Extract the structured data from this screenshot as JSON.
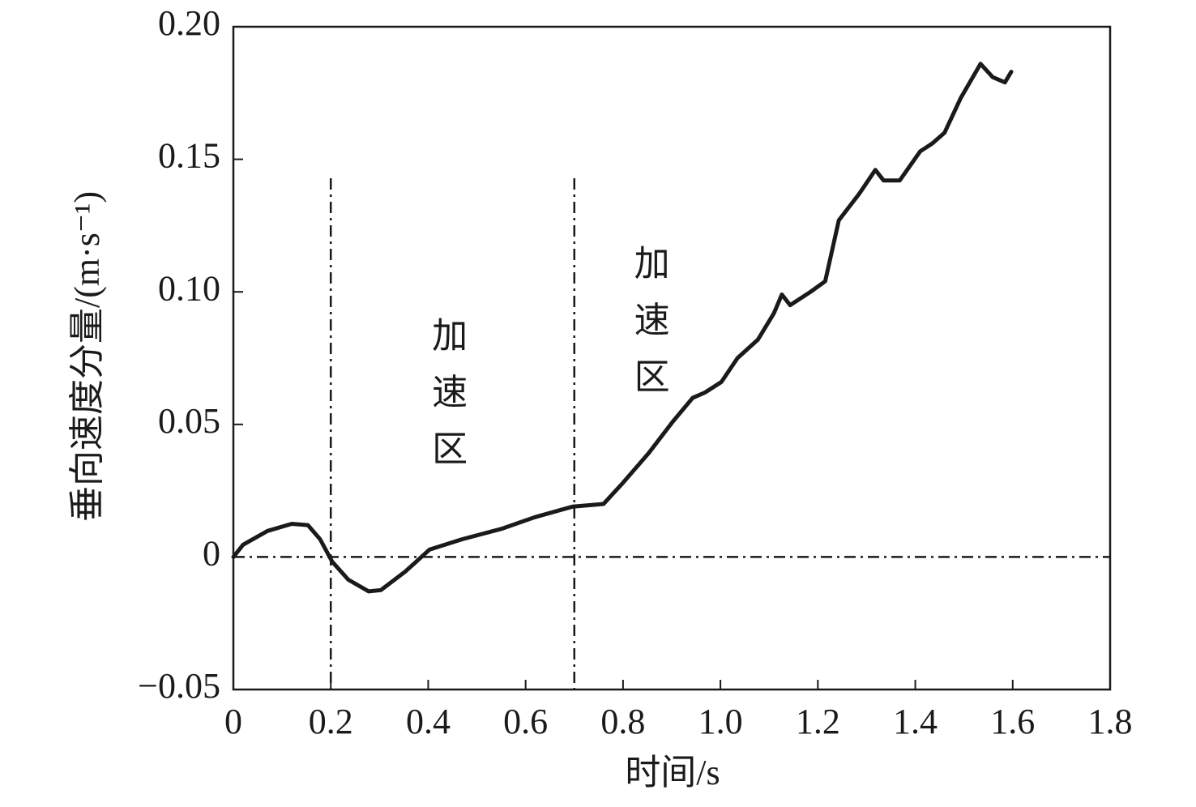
{
  "chart_data": {
    "type": "line",
    "xlabel": "时间/s",
    "ylabel": "垂向速度分量/(m·s⁻¹)",
    "x": [
      0,
      0.02,
      0.07,
      0.12,
      0.153,
      0.178,
      0.203,
      0.236,
      0.278,
      0.303,
      0.353,
      0.403,
      0.47,
      0.552,
      0.619,
      0.697,
      0.76,
      0.8,
      0.852,
      0.902,
      0.943,
      0.968,
      1.002,
      1.035,
      1.077,
      1.11,
      1.126,
      1.143,
      1.185,
      1.215,
      1.243,
      1.285,
      1.318,
      1.335,
      1.368,
      1.41,
      1.435,
      1.46,
      1.493,
      1.534,
      1.559,
      1.584,
      1.597
    ],
    "series": [
      {
        "color": "#1a1a1a",
        "values": [
          0,
          0.0046,
          0.0098,
          0.0125,
          0.012,
          0.0067,
          -0.0018,
          -0.0086,
          -0.013,
          -0.0125,
          -0.0055,
          0.0028,
          0.0067,
          0.0107,
          0.015,
          0.019,
          0.02,
          0.028,
          0.039,
          0.051,
          0.06,
          0.062,
          0.066,
          0.075,
          0.082,
          0.092,
          0.099,
          0.095,
          0.1,
          0.104,
          0.127,
          0.137,
          0.146,
          0.142,
          0.142,
          0.153,
          0.156,
          0.16,
          0.173,
          0.186,
          0.181,
          0.179,
          0.183
        ]
      }
    ],
    "xlim": [
      0,
      1.8
    ],
    "ylim": [
      -0.05,
      0.2
    ],
    "xticks": [
      0,
      0.2,
      0.4,
      0.6,
      0.8,
      {
        "value": 1,
        "label": "1.0"
      },
      1.2,
      1.4,
      1.6,
      1.8
    ],
    "yticks": [
      {
        "value": -0.05,
        "label": "−0.05"
      },
      0,
      0.05,
      {
        "value": 0.1,
        "label": "0.10"
      },
      0.15,
      {
        "value": 0.2,
        "label": "0.20"
      }
    ],
    "vlines": [
      0.2,
      0.7
    ],
    "hline": 0,
    "annotations": [
      {
        "text": "加速区",
        "x": 0.437,
        "y": 0.0908
      },
      {
        "text": "加速区",
        "x": 0.852,
        "y": 0.118
      }
    ]
  }
}
